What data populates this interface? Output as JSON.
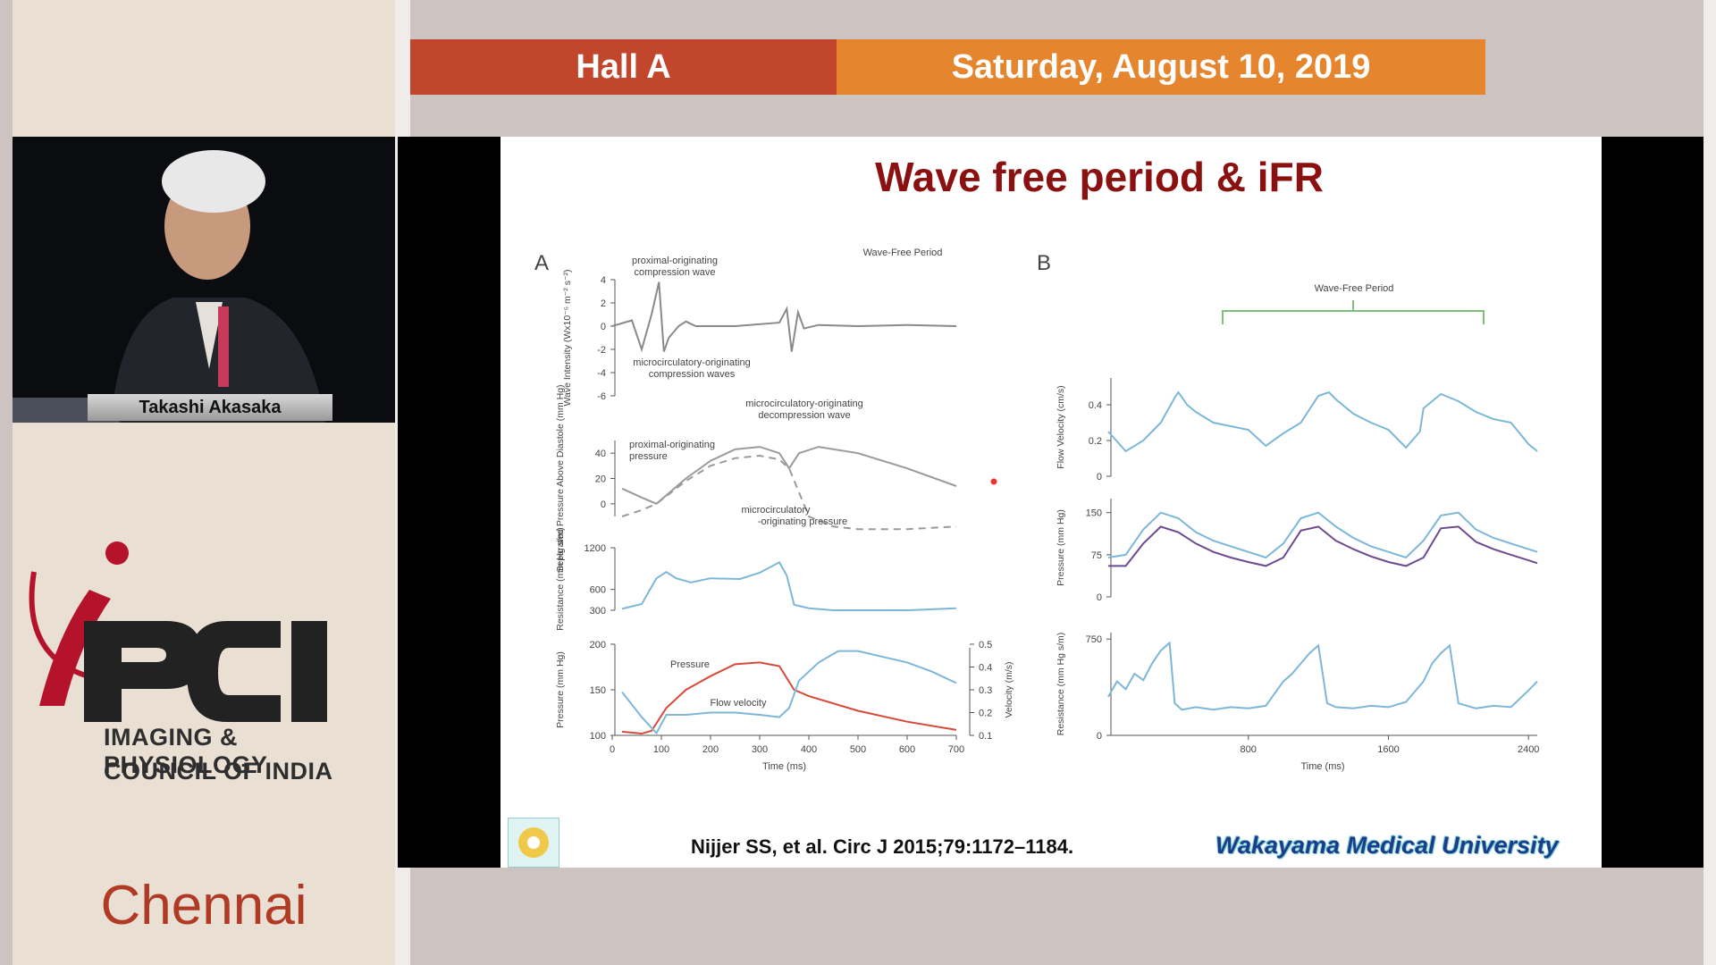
{
  "header": {
    "hall": "Hall A",
    "date": "Saturday, August 10, 2019"
  },
  "speaker": {
    "name": "Takashi Akasaka"
  },
  "logo": {
    "line1": "IMAGING & PHYSIOLOGY",
    "line2": "COUNCIL OF INDIA"
  },
  "city": "Chennai",
  "slide": {
    "title": "Wave free period & iFR",
    "citation": "Nijjer SS, et al. Circ J 2015;79:1172–1184.",
    "university": "Wakayama Medical University"
  },
  "colors": {
    "hall_bar": "#c2462b",
    "date_bar": "#e5862e",
    "title": "#8b1010",
    "trace_blue": "#7db7d8",
    "trace_red": "#d8493a",
    "trace_purple": "#6b4a8e",
    "bracket_green": "#7cc07a"
  },
  "chart_data": [
    {
      "panel": "A",
      "type": "line",
      "title": "Wave-Free Period",
      "ylabel": "Wave Intensity (Wx10⁻⁵ m⁻² s⁻²)",
      "yticks": [
        4,
        2,
        0,
        -2,
        -4,
        -6
      ],
      "ylim": [
        -6,
        4
      ],
      "annotations": [
        "proximal-originating compression wave",
        "microcirculatory-originating compression waves",
        "microcirculatory-originating decompression wave"
      ],
      "series": [
        {
          "x": [
            0,
            40,
            60,
            80,
            95,
            105,
            115,
            135,
            150,
            170,
            250,
            340,
            355,
            365,
            378,
            390,
            420,
            500,
            600,
            700
          ],
          "values": [
            0,
            0.5,
            -2,
            1,
            3.8,
            -2.2,
            -1,
            0,
            0.4,
            0,
            0,
            0.3,
            1.5,
            -2.2,
            1.2,
            -0.2,
            0.1,
            0,
            0.1,
            0
          ]
        }
      ]
    },
    {
      "panel": "A",
      "type": "line",
      "ylabel": "Separated Pressure Above Diastole (mm Hg)",
      "yticks": [
        40,
        20,
        0
      ],
      "ylim": [
        -10,
        50
      ],
      "annotations": [
        "proximal-originating pressure",
        "microcirculatory -originating pressure"
      ],
      "series": [
        {
          "x": [
            20,
            60,
            90,
            150,
            200,
            250,
            300,
            340,
            360,
            380,
            420,
            500,
            600,
            700
          ],
          "values": [
            12,
            5,
            0,
            20,
            34,
            43,
            45,
            40,
            28,
            40,
            45,
            40,
            28,
            14
          ],
          "style": "solid"
        },
        {
          "x": [
            20,
            60,
            90,
            150,
            200,
            250,
            300,
            340,
            360,
            400,
            450,
            500,
            600,
            700
          ],
          "values": [
            -10,
            -5,
            0,
            18,
            30,
            36,
            38,
            35,
            28,
            -10,
            -18,
            -20,
            -20,
            -18
          ],
          "style": "dashed"
        }
      ]
    },
    {
      "panel": "A",
      "type": "line",
      "ylabel": "Resistance (mm Hg s/m)",
      "yticks": [
        1200,
        600,
        300
      ],
      "ylim": [
        300,
        1200
      ],
      "series": [
        {
          "x": [
            20,
            60,
            90,
            110,
            130,
            160,
            200,
            260,
            300,
            340,
            355,
            370,
            400,
            450,
            500,
            600,
            700
          ],
          "values": [
            320,
            390,
            760,
            850,
            760,
            700,
            760,
            750,
            840,
            990,
            800,
            380,
            330,
            300,
            300,
            300,
            330
          ]
        }
      ]
    },
    {
      "panel": "A",
      "type": "line",
      "ylabel": "Pressure (mm Hg)",
      "y2label": "Velocity (m/s)",
      "xlabel": "Time (ms)",
      "xticks": [
        0,
        100,
        200,
        300,
        400,
        500,
        600,
        700
      ],
      "xlim": [
        0,
        700
      ],
      "yticks": [
        200,
        150,
        100
      ],
      "ylim": [
        100,
        200
      ],
      "y2ticks": [
        0.5,
        0.4,
        0.3,
        0.2,
        0.1
      ],
      "y2lim": [
        0.1,
        0.5
      ],
      "series": [
        {
          "name": "Pressure",
          "x": [
            20,
            60,
            80,
            110,
            150,
            200,
            250,
            300,
            340,
            370,
            400,
            500,
            600,
            700
          ],
          "values": [
            104,
            102,
            105,
            130,
            150,
            165,
            178,
            180,
            176,
            150,
            143,
            127,
            115,
            106
          ]
        },
        {
          "name": "Flow velocity",
          "x": [
            20,
            60,
            90,
            110,
            150,
            200,
            250,
            300,
            340,
            360,
            380,
            420,
            460,
            500,
            560,
            600,
            650,
            700
          ],
          "values": [
            0.29,
            0.18,
            0.11,
            0.19,
            0.19,
            0.2,
            0.2,
            0.19,
            0.18,
            0.22,
            0.34,
            0.42,
            0.47,
            0.47,
            0.44,
            0.42,
            0.38,
            0.33
          ]
        }
      ]
    },
    {
      "panel": "B",
      "type": "line",
      "title": "Wave-Free Period",
      "ylabel": "Flow Velocity (cm/s)",
      "yticks": [
        0.4,
        0.2,
        0
      ],
      "ylim": [
        0,
        0.55
      ],
      "series": [
        {
          "x": [
            0,
            100,
            200,
            300,
            380,
            400,
            450,
            500,
            600,
            700,
            800,
            900,
            1000,
            1100,
            1200,
            1260,
            1300,
            1400,
            1500,
            1600,
            1700,
            1780,
            1800,
            1900,
            2000,
            2100,
            2200,
            2300,
            2400,
            2450
          ],
          "values": [
            0.25,
            0.14,
            0.2,
            0.3,
            0.44,
            0.47,
            0.4,
            0.36,
            0.3,
            0.28,
            0.26,
            0.17,
            0.24,
            0.3,
            0.45,
            0.47,
            0.43,
            0.35,
            0.3,
            0.26,
            0.16,
            0.25,
            0.38,
            0.46,
            0.42,
            0.36,
            0.32,
            0.3,
            0.18,
            0.14
          ]
        }
      ]
    },
    {
      "panel": "B",
      "type": "line",
      "ylabel": "Pressure (mm Hg)",
      "yticks": [
        150,
        75,
        0
      ],
      "ylim": [
        0,
        175
      ],
      "series": [
        {
          "x": [
            0,
            100,
            200,
            300,
            400,
            500,
            600,
            700,
            800,
            900,
            1000,
            1100,
            1200,
            1300,
            1400,
            1500,
            1600,
            1700,
            1800,
            1900,
            2000,
            2100,
            2200,
            2300,
            2400,
            2450
          ],
          "values": [
            70,
            75,
            120,
            150,
            140,
            115,
            100,
            90,
            80,
            70,
            95,
            140,
            150,
            125,
            105,
            90,
            80,
            70,
            100,
            145,
            150,
            120,
            105,
            95,
            85,
            80
          ]
        },
        {
          "x": [
            0,
            100,
            200,
            300,
            400,
            500,
            600,
            700,
            800,
            900,
            1000,
            1100,
            1200,
            1300,
            1400,
            1500,
            1600,
            1700,
            1800,
            1900,
            2000,
            2100,
            2200,
            2300,
            2400,
            2450
          ],
          "values": [
            55,
            55,
            95,
            125,
            115,
            95,
            80,
            70,
            62,
            55,
            70,
            118,
            125,
            100,
            85,
            72,
            62,
            55,
            70,
            122,
            125,
            98,
            85,
            75,
            65,
            60
          ]
        }
      ]
    },
    {
      "panel": "B",
      "type": "line",
      "ylabel": "Resistance (mm Hg s/m)",
      "xlabel": "Time (ms)",
      "xticks": [
        800,
        1600,
        2400
      ],
      "xlim": [
        0,
        2450
      ],
      "yticks": [
        750,
        0
      ],
      "ylim": [
        0,
        800
      ],
      "series": [
        {
          "x": [
            0,
            50,
            100,
            150,
            200,
            250,
            300,
            350,
            380,
            420,
            500,
            600,
            700,
            800,
            900,
            1000,
            1050,
            1100,
            1150,
            1200,
            1250,
            1300,
            1400,
            1500,
            1600,
            1700,
            1800,
            1850,
            1900,
            1950,
            2000,
            2100,
            2200,
            2300,
            2400,
            2450
          ],
          "values": [
            300,
            420,
            360,
            480,
            430,
            560,
            660,
            720,
            250,
            200,
            220,
            200,
            220,
            210,
            230,
            420,
            480,
            560,
            640,
            700,
            250,
            220,
            210,
            230,
            220,
            260,
            420,
            560,
            640,
            700,
            250,
            210,
            230,
            220,
            350,
            420
          ]
        }
      ]
    }
  ]
}
